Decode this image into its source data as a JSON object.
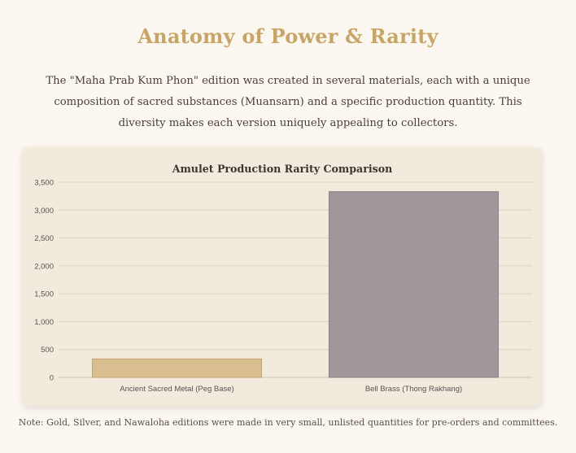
{
  "page": {
    "title": "Anatomy of Power & Rarity",
    "intro": "The \"Maha Prab Kum Phon\" edition was created in several materials, each with a unique composition of sacred substances (Muansarn) and a specific production quantity. This diversity makes each version uniquely appealing to collectors.",
    "note": "Note: Gold, Silver, and Nawaloha editions were made in very small, unlisted quantities for pre-orders and committees."
  },
  "chart_data": {
    "type": "bar",
    "title": "Amulet Production Rarity Comparison",
    "categories": [
      "Ancient Sacred Metal (Peg Base)",
      "Bell Brass (Thong Rakhang)"
    ],
    "values": [
      330,
      3330
    ],
    "colors": [
      "#d9bf8f",
      "#a1969a"
    ],
    "border_colors": [
      "#c6a46a",
      "#8d8286"
    ],
    "ylim": [
      0,
      3500
    ],
    "yticks": [
      0,
      500,
      1000,
      1500,
      2000,
      2500,
      3000,
      3500
    ],
    "ytick_labels": [
      "0",
      "500",
      "1,000",
      "1,500",
      "2,000",
      "2,500",
      "3,000",
      "3,500"
    ],
    "grid": true,
    "legend": "none"
  }
}
